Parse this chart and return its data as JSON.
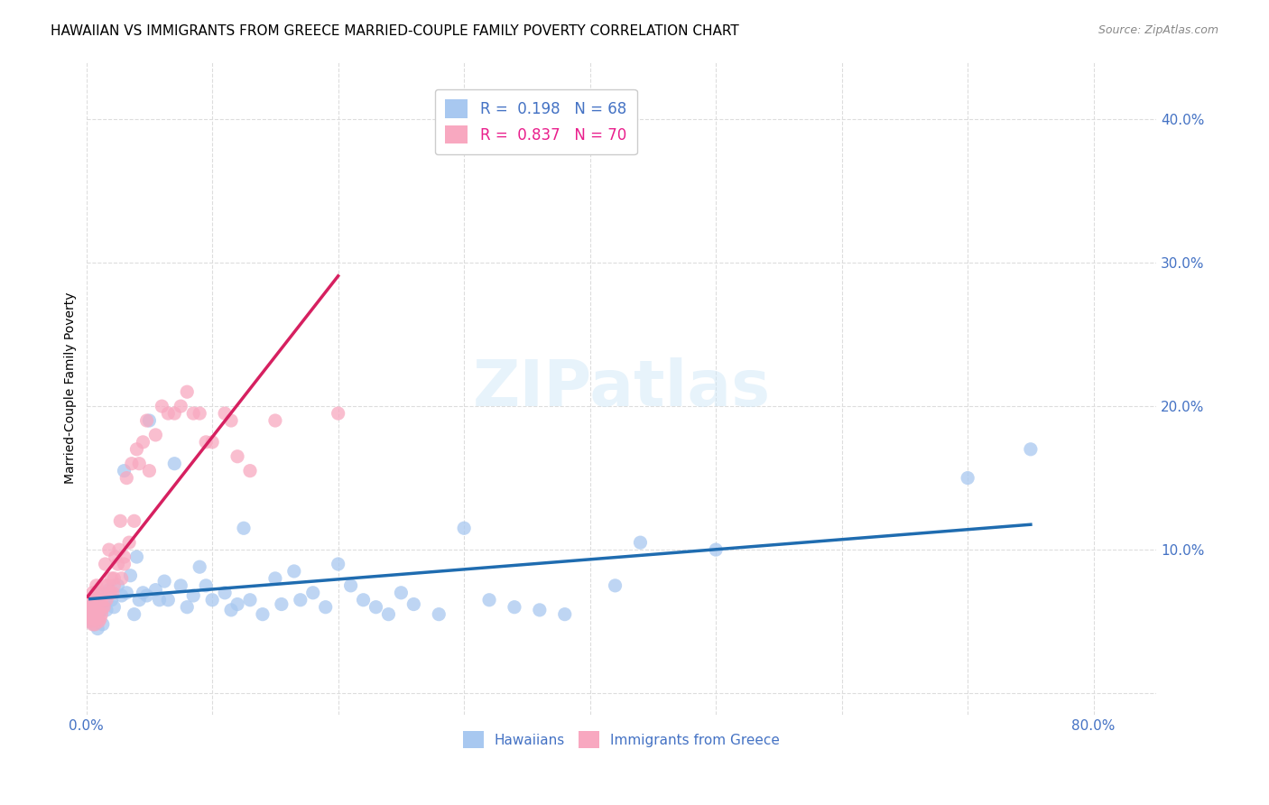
{
  "title": "HAWAIIAN VS IMMIGRANTS FROM GREECE MARRIED-COUPLE FAMILY POVERTY CORRELATION CHART",
  "source": "Source: ZipAtlas.com",
  "xlabel_bottom": "",
  "ylabel": "Married-Couple Family Poverty",
  "x_ticks": [
    0.0,
    0.1,
    0.2,
    0.3,
    0.4,
    0.5,
    0.6,
    0.7,
    0.8
  ],
  "x_tick_labels": [
    "0.0%",
    "",
    "",
    "",
    "",
    "",
    "",
    "",
    "80.0%"
  ],
  "y_ticks": [
    0.0,
    0.1,
    0.2,
    0.3,
    0.4
  ],
  "y_tick_labels_right": [
    "",
    "10.0%",
    "20.0%",
    "30.0%",
    "40.0%"
  ],
  "xlim": [
    0.0,
    0.85
  ],
  "ylim": [
    -0.015,
    0.44
  ],
  "legend_entries": [
    {
      "label": "R =  0.198   N = 68",
      "color": "#a8c8f8"
    },
    {
      "label": "R =  0.837   N = 70",
      "color": "#f8a8b8"
    }
  ],
  "watermark": "ZIPatlas",
  "blue_color": "#6baed6",
  "pink_color": "#f768a1",
  "blue_line_color": "#1f6cb0",
  "pink_line_color": "#d62f6e",
  "legend_blue_color": "#87CEEB",
  "legend_pink_color": "#FFB6C1",
  "legend_text_blue": "#4472C4",
  "legend_text_pink": "#E91E8C",
  "hawaiians_x": [
    0.003,
    0.005,
    0.006,
    0.007,
    0.008,
    0.008,
    0.009,
    0.01,
    0.011,
    0.012,
    0.013,
    0.015,
    0.016,
    0.018,
    0.02,
    0.022,
    0.025,
    0.028,
    0.03,
    0.032,
    0.035,
    0.038,
    0.04,
    0.042,
    0.045,
    0.048,
    0.05,
    0.055,
    0.058,
    0.062,
    0.065,
    0.07,
    0.075,
    0.08,
    0.085,
    0.09,
    0.095,
    0.1,
    0.11,
    0.115,
    0.12,
    0.125,
    0.13,
    0.14,
    0.15,
    0.155,
    0.165,
    0.17,
    0.18,
    0.19,
    0.2,
    0.21,
    0.22,
    0.23,
    0.24,
    0.25,
    0.26,
    0.28,
    0.3,
    0.32,
    0.34,
    0.36,
    0.38,
    0.42,
    0.44,
    0.5,
    0.7,
    0.75
  ],
  "hawaiians_y": [
    0.05,
    0.055,
    0.048,
    0.06,
    0.052,
    0.07,
    0.045,
    0.055,
    0.062,
    0.058,
    0.048,
    0.065,
    0.058,
    0.072,
    0.065,
    0.06,
    0.075,
    0.068,
    0.155,
    0.07,
    0.082,
    0.055,
    0.095,
    0.065,
    0.07,
    0.068,
    0.19,
    0.072,
    0.065,
    0.078,
    0.065,
    0.16,
    0.075,
    0.06,
    0.068,
    0.088,
    0.075,
    0.065,
    0.07,
    0.058,
    0.062,
    0.115,
    0.065,
    0.055,
    0.08,
    0.062,
    0.085,
    0.065,
    0.07,
    0.06,
    0.09,
    0.075,
    0.065,
    0.06,
    0.055,
    0.07,
    0.062,
    0.055,
    0.115,
    0.065,
    0.06,
    0.058,
    0.055,
    0.075,
    0.105,
    0.1,
    0.15,
    0.17
  ],
  "greece_x": [
    0.001,
    0.002,
    0.002,
    0.003,
    0.003,
    0.003,
    0.004,
    0.004,
    0.005,
    0.005,
    0.005,
    0.006,
    0.006,
    0.007,
    0.007,
    0.008,
    0.008,
    0.009,
    0.009,
    0.01,
    0.01,
    0.01,
    0.011,
    0.011,
    0.012,
    0.012,
    0.013,
    0.014,
    0.015,
    0.015,
    0.016,
    0.017,
    0.018,
    0.019,
    0.02,
    0.021,
    0.022,
    0.022,
    0.023,
    0.025,
    0.026,
    0.027,
    0.028,
    0.03,
    0.03,
    0.032,
    0.034,
    0.036,
    0.038,
    0.04,
    0.042,
    0.045,
    0.048,
    0.05,
    0.055,
    0.06,
    0.065,
    0.07,
    0.075,
    0.08,
    0.085,
    0.09,
    0.095,
    0.1,
    0.11,
    0.115,
    0.12,
    0.13,
    0.15,
    0.2
  ],
  "greece_y": [
    0.055,
    0.055,
    0.06,
    0.05,
    0.06,
    0.065,
    0.052,
    0.058,
    0.048,
    0.055,
    0.07,
    0.052,
    0.065,
    0.048,
    0.062,
    0.055,
    0.075,
    0.052,
    0.068,
    0.05,
    0.058,
    0.065,
    0.052,
    0.07,
    0.055,
    0.065,
    0.06,
    0.06,
    0.075,
    0.09,
    0.065,
    0.075,
    0.1,
    0.07,
    0.08,
    0.07,
    0.075,
    0.08,
    0.095,
    0.09,
    0.1,
    0.12,
    0.08,
    0.09,
    0.095,
    0.15,
    0.105,
    0.16,
    0.12,
    0.17,
    0.16,
    0.175,
    0.19,
    0.155,
    0.18,
    0.2,
    0.195,
    0.195,
    0.2,
    0.21,
    0.195,
    0.195,
    0.175,
    0.175,
    0.195,
    0.19,
    0.165,
    0.155,
    0.19,
    0.195
  ],
  "bg_color": "#ffffff",
  "grid_color": "#dddddd",
  "title_fontsize": 11,
  "axis_label_fontsize": 10,
  "tick_fontsize": 10
}
